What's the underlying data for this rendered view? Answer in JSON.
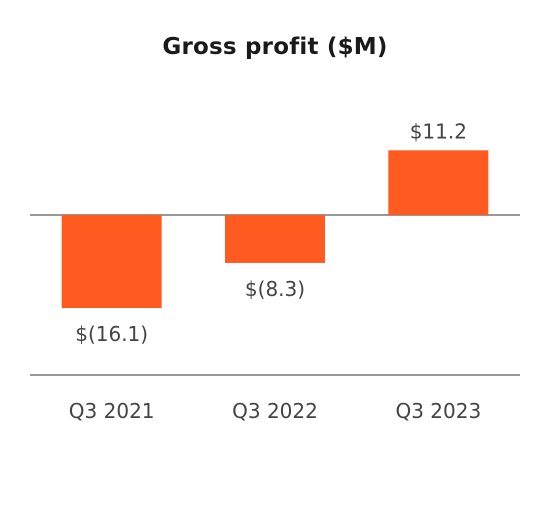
{
  "chart_data": {
    "type": "bar",
    "title": "Gross profit ($M)",
    "categories": [
      "Q3 2021",
      "Q3 2022",
      "Q3 2023"
    ],
    "values": [
      -16.1,
      -8.3,
      11.2
    ],
    "data_labels": [
      "$(16.1)",
      "$(8.3)",
      "$11.2"
    ],
    "xlabel": "",
    "ylabel": "",
    "ylim": [
      -16.1,
      11.2
    ],
    "grid": false,
    "legend": "none"
  },
  "colors": {
    "bar": "#ff5a1f",
    "axis_line": "#777777",
    "label_text": "#444444",
    "title_text": "#1a1a1a"
  }
}
